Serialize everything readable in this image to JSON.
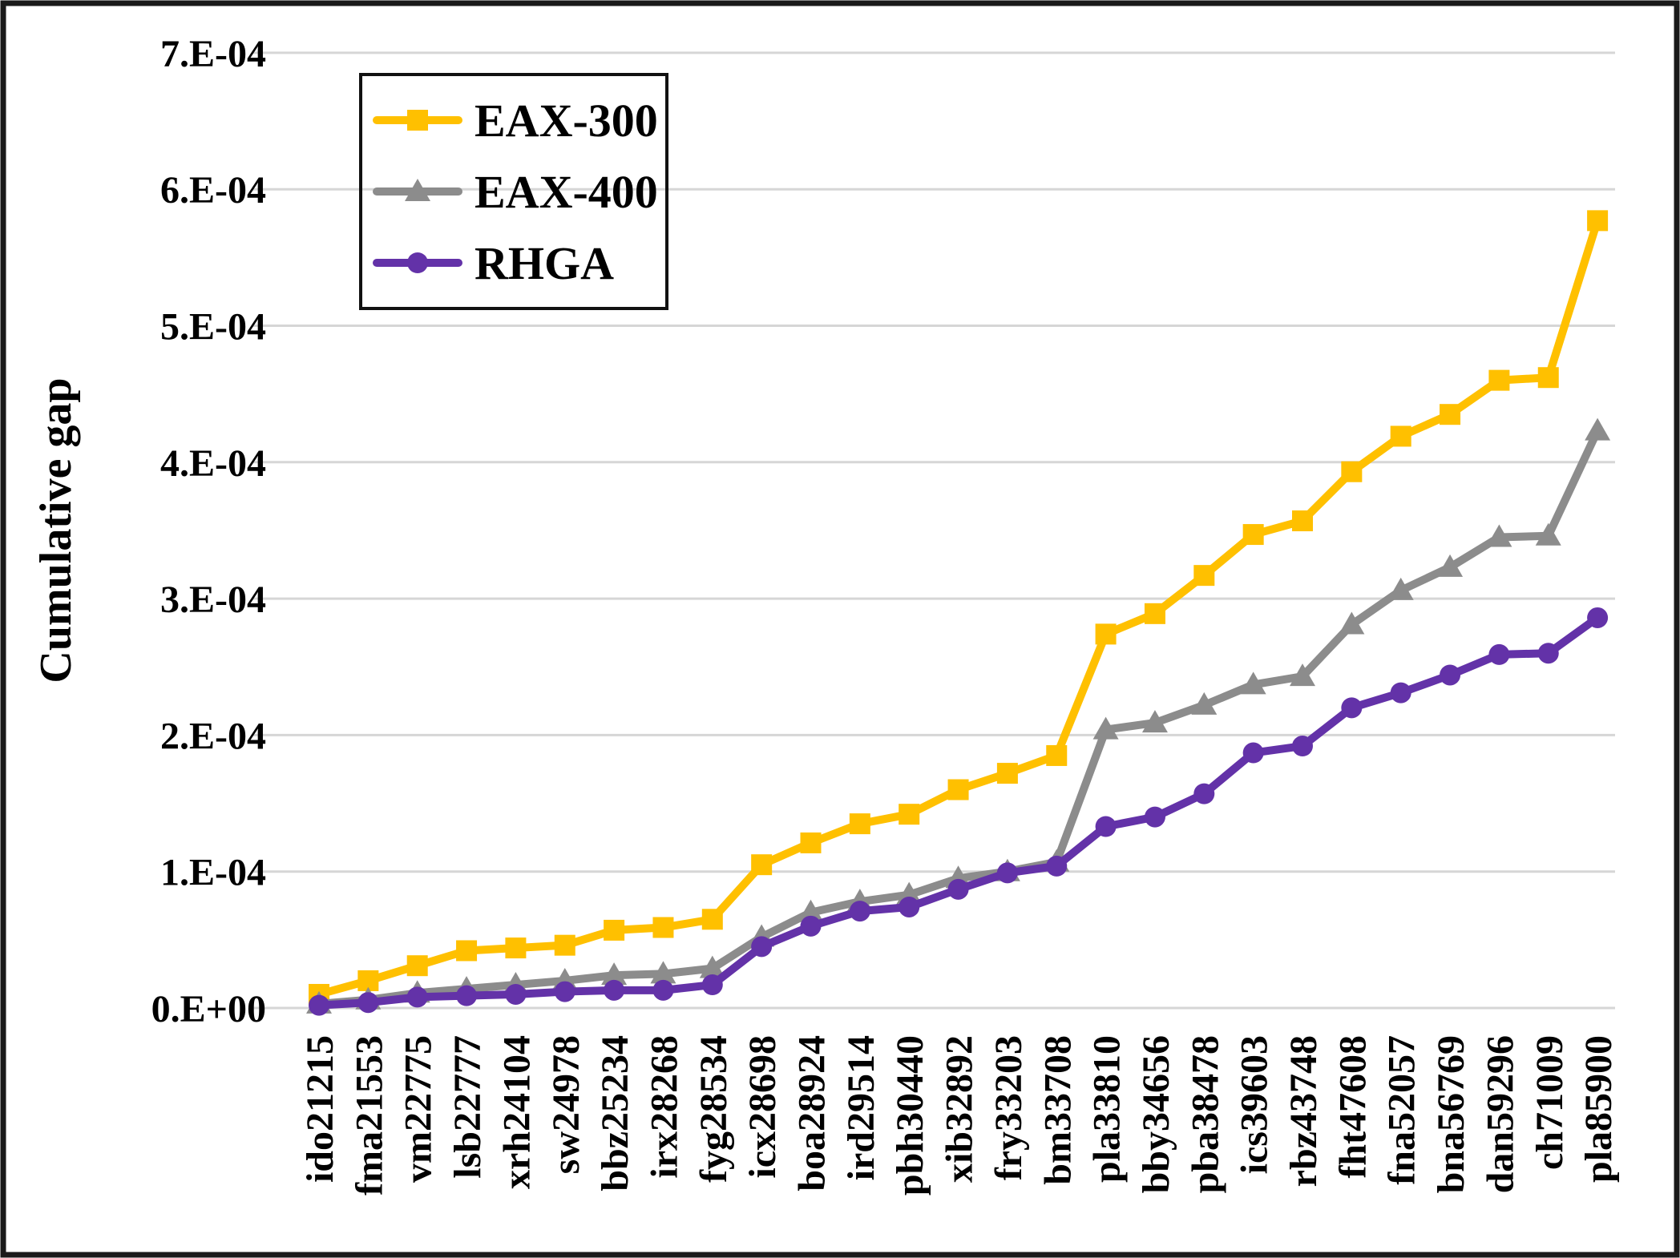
{
  "figure": {
    "background": "#ffffff",
    "frame_color": "#1a1a1a",
    "gridline_color": "#d6d6d6"
  },
  "chart_data": {
    "type": "line",
    "title": "",
    "xlabel": "",
    "ylabel": "Cumulative gap",
    "y_unit": "values are in units of 1.0E-04 (cumulative gap)",
    "ylim_1e4": [
      0,
      7
    ],
    "y_tick_labels": [
      "0.E+00",
      "1.E-04",
      "2.E-04",
      "3.E-04",
      "4.E-04",
      "5.E-04",
      "6.E-04",
      "7.E-04"
    ],
    "grid": "horizontal",
    "legend_position": "top-left-inside",
    "categories": [
      "ido21215",
      "fma21553",
      "vm22775",
      "lsb22777",
      "xrh24104",
      "sw24978",
      "bbz25234",
      "irx28268",
      "fyg28534",
      "icx28698",
      "boa28924",
      "ird29514",
      "pbh30440",
      "xib32892",
      "fry33203",
      "bm33708",
      "pla33810",
      "bby34656",
      "pba38478",
      "ics39603",
      "rbz43748",
      "fht47608",
      "fna52057",
      "bna56769",
      "dan59296",
      "ch71009",
      "pla85900"
    ],
    "series": [
      {
        "name": "EAX-300",
        "color": "#FFC000",
        "marker": "square",
        "values_1e4": [
          0.1,
          0.2,
          0.31,
          0.42,
          0.44,
          0.46,
          0.57,
          0.59,
          0.65,
          1.05,
          1.21,
          1.35,
          1.42,
          1.6,
          1.72,
          1.85,
          2.74,
          2.89,
          3.17,
          3.47,
          3.57,
          3.93,
          4.19,
          4.35,
          4.6,
          4.62,
          5.77
        ]
      },
      {
        "name": "EAX-400",
        "color": "#8C8C8C",
        "marker": "triangle",
        "values_1e4": [
          0.03,
          0.06,
          0.11,
          0.14,
          0.17,
          0.2,
          0.24,
          0.25,
          0.29,
          0.52,
          0.7,
          0.78,
          0.83,
          0.95,
          1.0,
          1.07,
          2.04,
          2.09,
          2.22,
          2.37,
          2.43,
          2.81,
          3.06,
          3.23,
          3.45,
          3.46,
          4.23
        ]
      },
      {
        "name": "RHGA",
        "color": "#6332A8",
        "marker": "circle",
        "values_1e4": [
          0.02,
          0.04,
          0.08,
          0.09,
          0.1,
          0.12,
          0.13,
          0.13,
          0.17,
          0.45,
          0.6,
          0.71,
          0.74,
          0.87,
          0.99,
          1.04,
          1.33,
          1.4,
          1.57,
          1.87,
          1.92,
          2.2,
          2.31,
          2.44,
          2.59,
          2.6,
          2.86
        ]
      }
    ]
  }
}
